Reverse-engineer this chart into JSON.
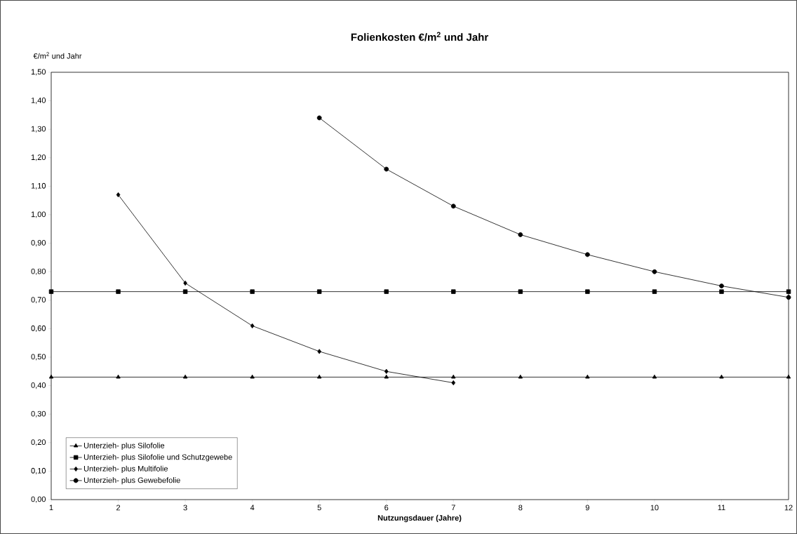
{
  "chart_data": {
    "type": "line",
    "title": "Folienkosten €/m$^{2}$ und Jahr",
    "xlabel": "Nutzungsdauer (Jahre)",
    "ylabel": "€/m$^{2}$ und Jahr",
    "xlim": [
      1,
      12
    ],
    "xticks": [
      1,
      2,
      3,
      4,
      5,
      6,
      7,
      8,
      9,
      10,
      11,
      12
    ],
    "ylim": [
      0,
      1.5
    ],
    "yticks": [
      {
        "value": 0,
        "label": "0,00"
      },
      {
        "value": 0.1,
        "label": "0,10"
      },
      {
        "value": 0.2,
        "label": "0,20"
      },
      {
        "value": 0.3,
        "label": "0,30"
      },
      {
        "value": 0.4,
        "label": "0,40"
      },
      {
        "value": 0.5,
        "label": "0,50"
      },
      {
        "value": 0.6,
        "label": "0,60"
      },
      {
        "value": 0.7,
        "label": "0,70"
      },
      {
        "value": 0.8,
        "label": "0,80"
      },
      {
        "value": 0.9,
        "label": "0,90"
      },
      {
        "value": 1.0,
        "label": "1,00"
      },
      {
        "value": 1.1,
        "label": "1,10"
      },
      {
        "value": 1.2,
        "label": "1,20"
      },
      {
        "value": 1.3,
        "label": "1,30"
      },
      {
        "value": 1.4,
        "label": "1,40"
      },
      {
        "value": 1.5,
        "label": "1,50"
      }
    ],
    "grid": false,
    "legend": "bottom left",
    "series": [
      {
        "name": "Unterzieh- plus Silofolie",
        "color": "#000000",
        "marker": "triangle",
        "x": [
          1,
          2,
          3,
          4,
          5,
          6,
          7,
          8,
          9,
          10,
          11,
          12
        ],
        "values": [
          0.43,
          0.43,
          0.43,
          0.43,
          0.43,
          0.43,
          0.43,
          0.43,
          0.43,
          0.43,
          0.43,
          0.43
        ]
      },
      {
        "name": "Unterzieh- plus Silofolie und Schutzgewebe",
        "color": "#000000",
        "marker": "square",
        "x": [
          1,
          2,
          3,
          4,
          5,
          6,
          7,
          8,
          9,
          10,
          11,
          12
        ],
        "values": [
          0.73,
          0.73,
          0.73,
          0.73,
          0.73,
          0.73,
          0.73,
          0.73,
          0.73,
          0.73,
          0.73,
          0.73
        ]
      },
      {
        "name": "Unterzieh- plus Multifolie",
        "color": "#000000",
        "marker": "diamond",
        "x": [
          2,
          3,
          4,
          5,
          6,
          7
        ],
        "values": [
          1.07,
          0.76,
          0.61,
          0.52,
          0.45,
          0.41
        ]
      },
      {
        "name": "Unterzieh- plus Gewebefolie",
        "color": "#000000",
        "marker": "circle",
        "x": [
          5,
          6,
          7,
          8,
          9,
          10,
          11,
          12
        ],
        "values": [
          1.34,
          1.16,
          1.03,
          0.93,
          0.86,
          0.8,
          0.75,
          0.71
        ]
      }
    ]
  }
}
